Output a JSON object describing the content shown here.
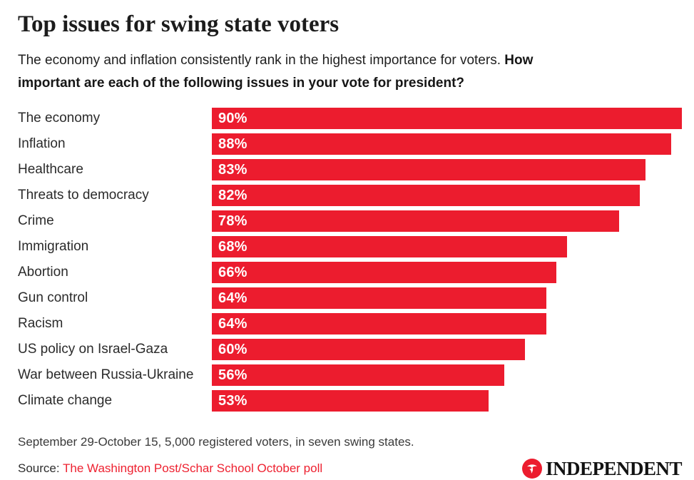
{
  "colors": {
    "bar_red": "#ec1c2e",
    "link_red": "#ee2130",
    "title_text": "#1c1c1c",
    "body_text": "#2b2b2b",
    "background": "#ffffff"
  },
  "header": {
    "title": "Top issues for swing state voters",
    "subtitle_regular": "The economy and inflation consistently rank in the highest importance for voters. ",
    "subtitle_bold": "How important are each of the following issues in your vote for president?"
  },
  "chart_data": {
    "type": "bar",
    "orientation": "horizontal",
    "title": "Top issues for swing state voters",
    "categories": [
      "The economy",
      "Inflation",
      "Healthcare",
      "Threats to democracy",
      "Crime",
      "Immigration",
      "Abortion",
      "Gun control",
      "Racism",
      "US policy on Israel-Gaza",
      "War between Russia-Ukraine",
      "Climate change"
    ],
    "values": [
      90,
      88,
      83,
      82,
      78,
      68,
      66,
      64,
      64,
      60,
      56,
      53
    ],
    "value_labels": [
      "90%",
      "88%",
      "83%",
      "82%",
      "78%",
      "68%",
      "66%",
      "64%",
      "64%",
      "60%",
      "56%",
      "53%"
    ],
    "xlabel": "",
    "ylabel": "",
    "xlim": [
      0,
      90
    ],
    "grid": false,
    "legend": false,
    "bar_color": "#ec1c2e",
    "value_label_color": "#ffffff",
    "value_label_position": "inside-start"
  },
  "footer": {
    "note": "September 29-October 15, 5,000 registered voters, in seven swing states.",
    "source_label": "Source: ",
    "source_link": "The Washington Post/Schar School October poll",
    "brand": "INDEPENDENT"
  }
}
